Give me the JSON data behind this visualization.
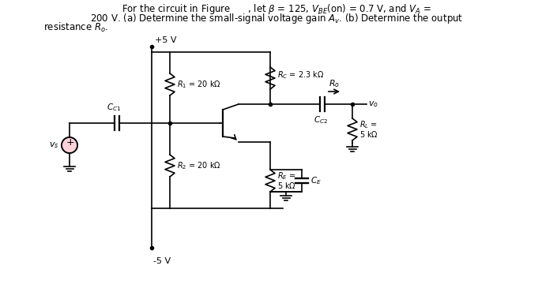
{
  "bg_color": "#ffffff",
  "line_color": "#000000",
  "text_color": "#000000",
  "r1_label": "$R_1$ = 20 k$\\Omega$",
  "r2_label": "$R_2$ = 20 k$\\Omega$",
  "rc_label": "$R_C$ = 2.3 k$\\Omega$",
  "re_label1": "$R_E$ =",
  "re_label2": "5 k$\\Omega$",
  "rl_label1": "$R_L$ =",
  "rl_label2": "5 k$\\Omega$",
  "cc1_label": "$C_{C1}$",
  "cc2_label": "$C_{C2}$",
  "ce_label": "$C_E$",
  "ro_label": "$R_o$",
  "vs_label": "$v_s$",
  "vo_label": "$v_o$",
  "vcc_label": "+5 V",
  "vee_label": "-5 V",
  "header1": "For the circuit in Figure      , let $\\beta$ = 125, $V_{BE}$(on) = 0.7 V, and $V_A$ =",
  "header2": "200 V. (a) Determine the small-signal voltage gain $A_v$. (b) Determine the output",
  "header3": "resistance $R_o$."
}
